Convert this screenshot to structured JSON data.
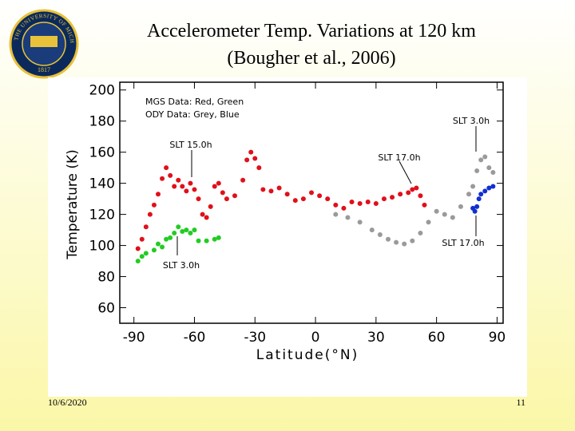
{
  "slide": {
    "date": "10/6/2020",
    "page": "11",
    "logo": {
      "ring": "THE UNIVERSITY OF MICHIGAN",
      "year": "1817"
    }
  },
  "chart_data": {
    "type": "scatter",
    "title": "Accelerometer Temp. Variations at 120 km",
    "subtitle": "(Bougher et al., 2006)",
    "x_label": "Latitude(°N)",
    "y_label": "Temperature  (K)",
    "annotations": [
      "MGS Data: Red, Green",
      "ODY Data: Grey, Blue",
      "SLT 15.0h",
      "SLT 3.0h",
      "SLT 17.0h",
      "SLT 3.0h",
      "SLT 17.0h"
    ],
    "xlim": [
      -97,
      93
    ],
    "xticks": [
      -90,
      -60,
      -30,
      0,
      30,
      60,
      90
    ],
    "ylim": [
      50,
      205
    ],
    "yticks": [
      60,
      80,
      100,
      120,
      140,
      160,
      180,
      200
    ],
    "series": [
      {
        "color": "#e0101a",
        "x": [
          -88,
          -86,
          -84,
          -82,
          -80,
          -78,
          -76,
          -74,
          -72,
          -70,
          -68,
          -66,
          -64,
          -62,
          -60,
          -58,
          -56,
          -54,
          -52,
          -50,
          -48,
          -46,
          -44,
          -40,
          -36,
          -34,
          -32,
          -30,
          -28,
          -26,
          -22,
          -18,
          -14,
          -10,
          -6,
          -2,
          2,
          6,
          10,
          14,
          18,
          22,
          26,
          30,
          34,
          38,
          42,
          46,
          48,
          50,
          52,
          54
        ],
        "values": [
          98,
          104,
          112,
          120,
          126,
          133,
          143,
          150,
          145,
          138,
          142,
          138,
          135,
          140,
          136,
          130,
          120,
          118,
          125,
          138,
          140,
          134,
          130,
          132,
          142,
          155,
          160,
          156,
          150,
          136,
          135,
          137,
          133,
          129,
          130,
          134,
          132,
          130,
          126,
          124,
          128,
          127,
          128,
          127,
          130,
          131,
          133,
          134,
          136,
          137,
          132,
          126
        ]
      },
      {
        "color": "#22cc22",
        "x": [
          -88,
          -86,
          -84,
          -80,
          -78,
          -76,
          -74,
          -72,
          -70,
          -68,
          -66,
          -64,
          -62,
          -60,
          -58,
          -54,
          -50,
          -48
        ],
        "values": [
          90,
          93,
          95,
          97,
          101,
          99,
          104,
          105,
          108,
          112,
          109,
          110,
          108,
          110,
          103,
          103,
          104,
          105
        ]
      },
      {
        "color": "#9a9a9a",
        "x": [
          10,
          16,
          22,
          28,
          32,
          36,
          40,
          44,
          48,
          52,
          56,
          60,
          64,
          68,
          72,
          76,
          78,
          80,
          82,
          84,
          86,
          88
        ],
        "values": [
          120,
          118,
          115,
          110,
          107,
          104,
          102,
          101,
          103,
          108,
          115,
          122,
          120,
          118,
          125,
          133,
          138,
          148,
          155,
          157,
          150,
          147
        ]
      },
      {
        "color": "#1030d0",
        "x": [
          78,
          79,
          80,
          81,
          82,
          84,
          86,
          88
        ],
        "values": [
          124,
          122,
          125,
          130,
          133,
          135,
          137,
          138
        ]
      }
    ]
  }
}
